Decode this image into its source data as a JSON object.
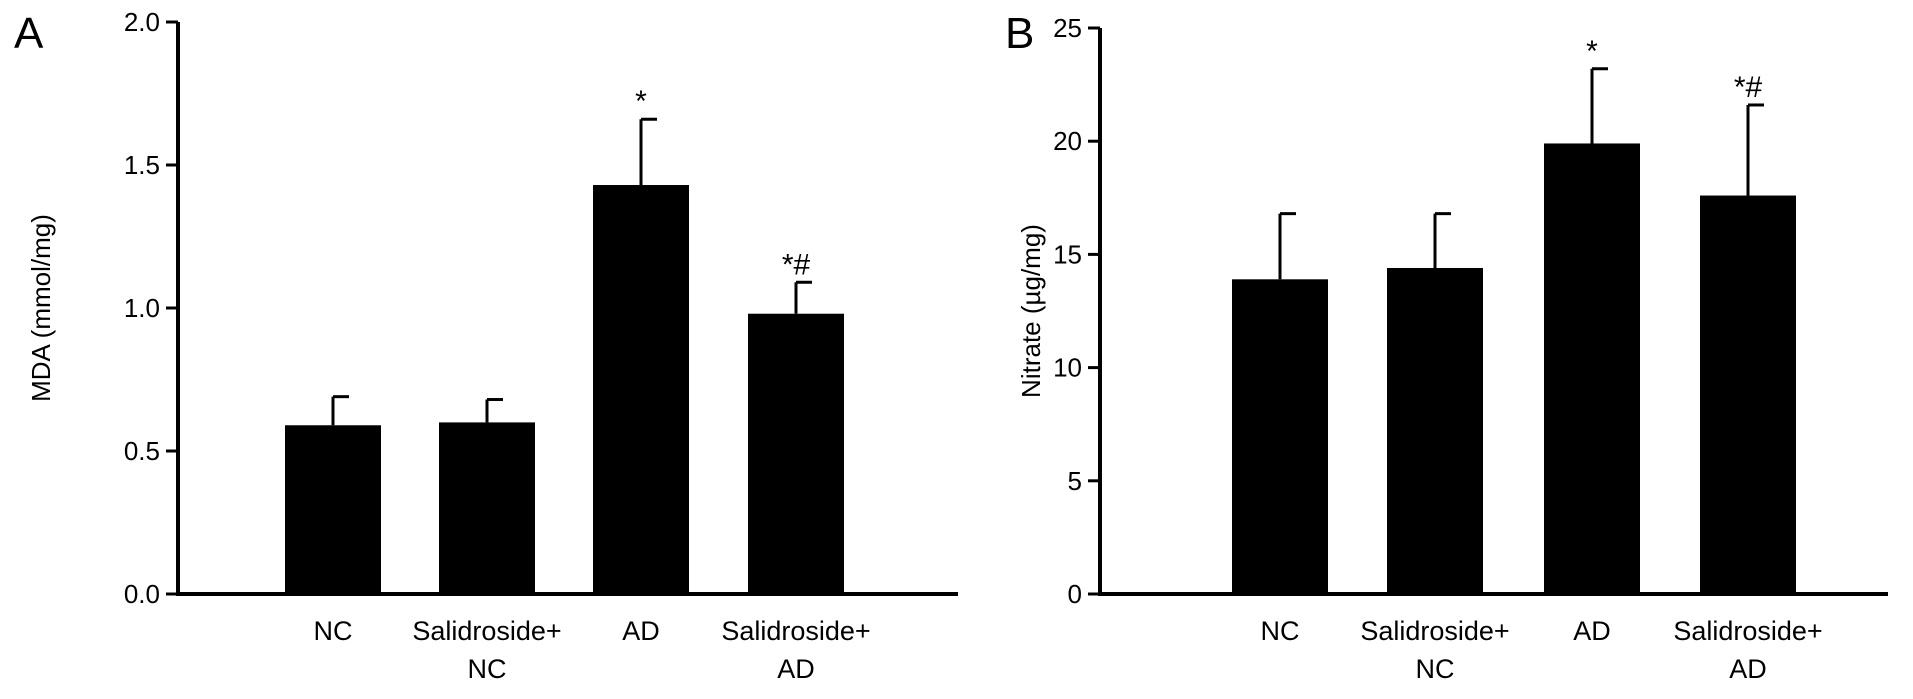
{
  "chart_data": [
    {
      "type": "bar",
      "panel_label": "A",
      "ylabel": "MDA (mmol/mg)",
      "categories": [
        [
          "NC"
        ],
        [
          "Salidroside+",
          "NC"
        ],
        [
          "AD"
        ],
        [
          "Salidroside+",
          "AD"
        ]
      ],
      "values": [
        0.59,
        0.6,
        1.43,
        0.98
      ],
      "errors": [
        0.1,
        0.08,
        0.23,
        0.11
      ],
      "annotations": [
        "",
        "",
        "*",
        "*#"
      ],
      "ylim": [
        0,
        2.0
      ],
      "yticks": [
        0.0,
        0.5,
        1.0,
        1.5,
        2.0
      ],
      "ytick_labels": [
        "0.0",
        "0.5",
        "1.0",
        "1.5",
        "2.0"
      ],
      "bar_color": "#000000",
      "grid": false,
      "legend": "none"
    },
    {
      "type": "bar",
      "panel_label": "B",
      "ylabel": "Nitrate (µg/mg)",
      "categories": [
        [
          "NC"
        ],
        [
          "Salidroside+",
          "NC"
        ],
        [
          "AD"
        ],
        [
          "Salidroside+",
          "AD"
        ]
      ],
      "values": [
        13.9,
        14.4,
        19.9,
        17.6
      ],
      "errors": [
        2.9,
        2.4,
        3.3,
        4.0
      ],
      "annotations": [
        "",
        "",
        "*",
        "*#"
      ],
      "ylim": [
        0,
        25
      ],
      "yticks": [
        0,
        5,
        10,
        15,
        20,
        25
      ],
      "ytick_labels": [
        "0",
        "5",
        "10",
        "15",
        "20",
        "25"
      ],
      "bar_color": "#000000",
      "grid": false,
      "legend": "none"
    }
  ]
}
